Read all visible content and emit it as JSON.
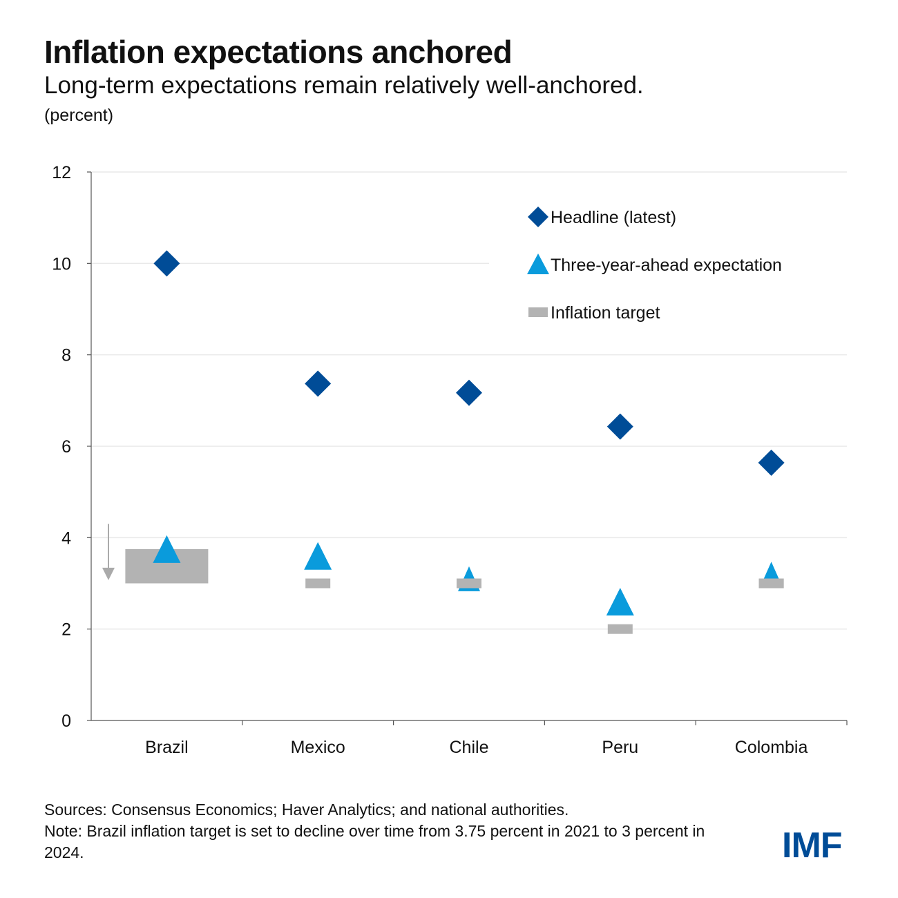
{
  "title": "Inflation expectations anchored",
  "subtitle": "Long-term expectations remain relatively well-anchored.",
  "unit": "(percent)",
  "sources": "Sources: Consensus Economics; Haver Analytics; and national authorities.",
  "note": "Note: Brazil inflation target is set to decline over time from 3.75 percent in 2021 to 3 percent in 2024.",
  "logo": "IMF",
  "colors": {
    "headline": "#004c97",
    "expectation": "#0a9bdc",
    "target": "#b3b3b3",
    "grid": "#e9e9e9",
    "axis": "#555555"
  },
  "chart_data": {
    "type": "scatter",
    "categories": [
      "Brazil",
      "Mexico",
      "Chile",
      "Peru",
      "Colombia"
    ],
    "ylim": [
      0,
      12
    ],
    "yticks": [
      0,
      2,
      4,
      6,
      8,
      10,
      12
    ],
    "grid": true,
    "legend_position": "top-right",
    "series": [
      {
        "name": "Headline (latest)",
        "marker": "diamond",
        "values": [
          10.0,
          7.37,
          7.17,
          6.43,
          5.64
        ]
      },
      {
        "name": "Three-year-ahead expectation",
        "marker": "triangle",
        "values": [
          3.75,
          3.6,
          3.1,
          2.6,
          3.2
        ]
      },
      {
        "name": "Inflation target",
        "marker": "bar",
        "values": [
          [
            3.0,
            3.75
          ],
          3.0,
          3.0,
          2.0,
          3.0
        ]
      }
    ],
    "annotations": [
      {
        "category": "Brazil",
        "type": "down-arrow",
        "from": 4.3,
        "to": 3.1
      }
    ]
  }
}
